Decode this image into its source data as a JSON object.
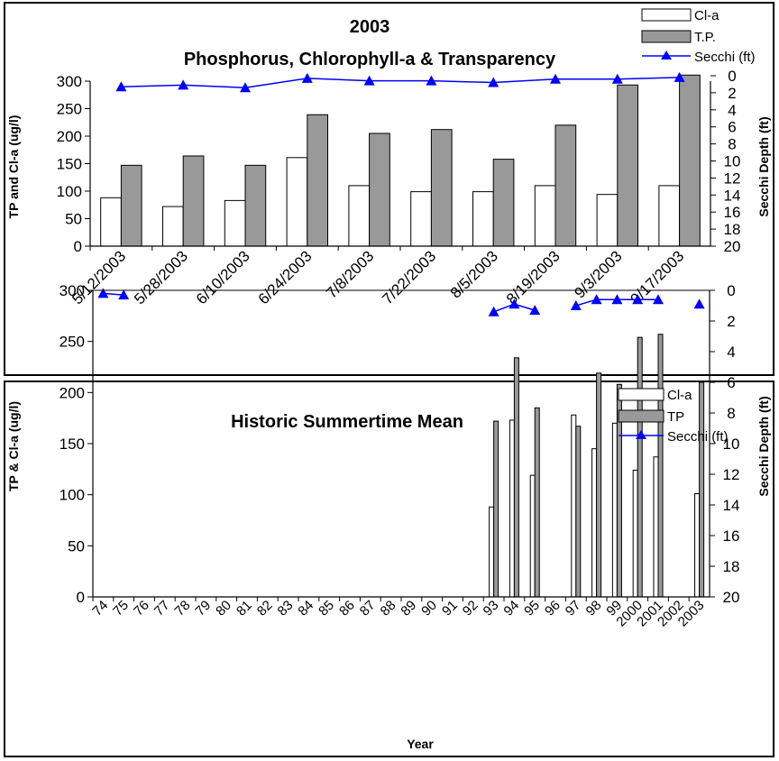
{
  "chart_data": [
    {
      "type": "bar",
      "title": "2003",
      "subtitle": "Phosphorus, Chlorophyll-a & Transparency",
      "ylabel": "TP and Cl-a (ug/l)",
      "y2label": "Secchi Depth (ft)",
      "xlabel": "",
      "ylim": [
        0,
        300
      ],
      "yticks": [
        0,
        50,
        100,
        150,
        200,
        250,
        300
      ],
      "y2lim": [
        0,
        20
      ],
      "y2ticks": [
        0,
        2,
        4,
        6,
        8,
        10,
        12,
        14,
        16,
        18,
        20
      ],
      "y2_inverted": true,
      "legend_position": "top-right",
      "categories": [
        "5/12/2003",
        "5/28/2003",
        "6/10/2003",
        "6/24/2003",
        "7/8/2003",
        "7/22/2003",
        "8/5/2003",
        "8/19/2003",
        "9/3/2003",
        "9/17/2003"
      ],
      "series": [
        {
          "name": "Cl-a",
          "kind": "bar",
          "color": "#ffffff",
          "values": [
            88,
            72,
            83,
            161,
            110,
            99,
            99,
            110,
            94,
            110
          ]
        },
        {
          "name": "T.P.",
          "kind": "bar",
          "color": "#999999",
          "values": [
            147,
            164,
            147,
            239,
            205,
            212,
            158,
            220,
            293,
            311
          ]
        },
        {
          "name": "Secchi (ft)",
          "kind": "line",
          "axis": "right",
          "color": "#0000ff",
          "values": [
            1.3,
            1.1,
            1.4,
            0.3,
            0.6,
            0.6,
            0.8,
            0.4,
            0.4,
            0.2
          ]
        }
      ]
    },
    {
      "type": "bar",
      "title": "Historic Summertime Mean",
      "xlabel": "Year",
      "ylabel": "TP & Cl-a (ug/l)",
      "y2label": "Secchi Depth (ft)",
      "ylim": [
        0,
        300
      ],
      "yticks": [
        0,
        50,
        100,
        150,
        200,
        250,
        300
      ],
      "y2lim": [
        0,
        20
      ],
      "y2ticks": [
        0,
        2,
        4,
        6,
        8,
        10,
        12,
        14,
        16,
        18,
        20
      ],
      "y2_inverted": true,
      "legend_position": "top-right",
      "categories": [
        "74",
        "75",
        "76",
        "77",
        "78",
        "79",
        "80",
        "81",
        "82",
        "83",
        "84",
        "85",
        "86",
        "87",
        "88",
        "89",
        "90",
        "91",
        "92",
        "93",
        "94",
        "95",
        "96",
        "97",
        "98",
        "99",
        "2000",
        "2001",
        "2002",
        "2003"
      ],
      "series": [
        {
          "name": "Cl-a",
          "kind": "bar",
          "color": "#ffffff",
          "values": [
            null,
            null,
            null,
            null,
            null,
            null,
            null,
            null,
            null,
            null,
            null,
            null,
            null,
            null,
            null,
            null,
            null,
            null,
            null,
            88,
            173,
            119,
            null,
            178,
            145,
            170,
            124,
            137,
            null,
            101
          ]
        },
        {
          "name": "TP",
          "kind": "bar",
          "color": "#999999",
          "values": [
            null,
            null,
            null,
            null,
            null,
            null,
            null,
            null,
            null,
            null,
            null,
            null,
            null,
            null,
            null,
            null,
            null,
            null,
            null,
            172,
            234,
            185,
            null,
            167,
            219,
            208,
            254,
            257,
            null,
            210
          ]
        },
        {
          "name": "Secchi (ft)",
          "kind": "line",
          "axis": "right",
          "color": "#0000ff",
          "values": [
            0.2,
            0.3,
            null,
            null,
            null,
            null,
            null,
            null,
            null,
            null,
            null,
            null,
            null,
            null,
            null,
            null,
            null,
            null,
            null,
            1.4,
            0.9,
            1.3,
            null,
            1.0,
            0.6,
            0.6,
            0.6,
            0.6,
            null,
            0.9
          ]
        }
      ]
    }
  ]
}
